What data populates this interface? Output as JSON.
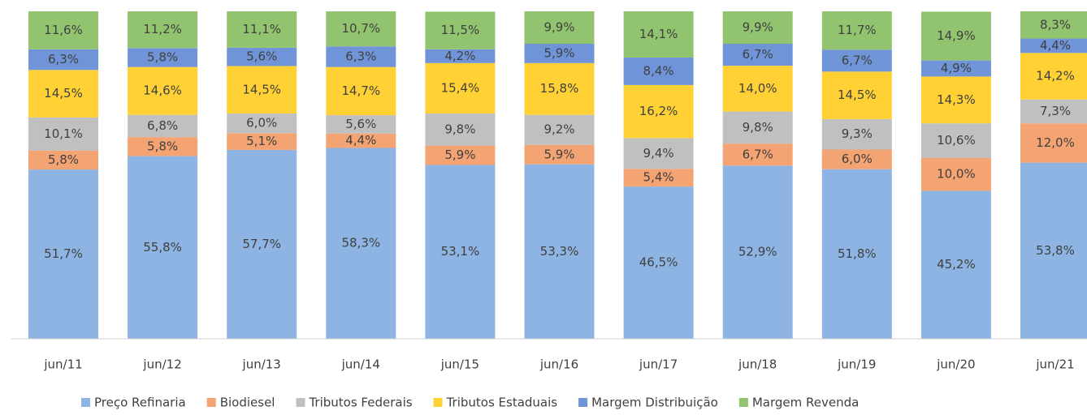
{
  "chart_data": {
    "type": "stacked_bar",
    "categories": [
      "jun/11",
      "jun/12",
      "jun/13",
      "jun/14",
      "jun/15",
      "jun/16",
      "jun/17",
      "jun/18",
      "jun/19",
      "jun/20",
      "jun/21"
    ],
    "ylim": [
      0,
      100
    ],
    "legend": "bottom",
    "series": [
      {
        "name": "Preço Refinaria",
        "color": "#8db4e2",
        "values": [
          51.7,
          55.8,
          57.7,
          58.3,
          53.1,
          53.3,
          46.5,
          52.9,
          51.8,
          45.2,
          53.8
        ],
        "value_labels": [
          "51,7%",
          "55,8%",
          "57,7%",
          "58,3%",
          "53,1%",
          "53,3%",
          "46,5%",
          "52,9%",
          "51,8%",
          "45,2%",
          "53,8%"
        ]
      },
      {
        "name": "Biodiesel",
        "color": "#f4a373",
        "values": [
          5.8,
          5.8,
          5.1,
          4.4,
          5.9,
          5.9,
          5.4,
          6.7,
          6.0,
          10.0,
          12.0
        ],
        "value_labels": [
          "5,8%",
          "5,8%",
          "5,1%",
          "4,4%",
          "5,9%",
          "5,9%",
          "5,4%",
          "6,7%",
          "6,0%",
          "10,0%",
          "12,0%"
        ]
      },
      {
        "name": "Tributos Federais",
        "color": "#c0c0c0",
        "values": [
          10.1,
          6.8,
          6.0,
          5.6,
          9.8,
          9.2,
          9.4,
          9.8,
          9.3,
          10.6,
          7.3
        ],
        "value_labels": [
          "10,1%",
          "6,8%",
          "6,0%",
          "5,6%",
          "9,8%",
          "9,2%",
          "9,4%",
          "9,8%",
          "9,3%",
          "10,6%",
          "7,3%"
        ]
      },
      {
        "name": "Tributos Estaduais",
        "color": "#ffd134",
        "values": [
          14.5,
          14.6,
          14.5,
          14.7,
          15.4,
          15.8,
          16.2,
          14.0,
          14.5,
          14.3,
          14.2
        ],
        "value_labels": [
          "14,5%",
          "14,6%",
          "14,5%",
          "14,7%",
          "15,4%",
          "15,8%",
          "16,2%",
          "14,0%",
          "14,5%",
          "14,3%",
          "14,2%"
        ]
      },
      {
        "name": "Margem Distribuição",
        "color": "#7094d8",
        "values": [
          6.3,
          5.8,
          5.6,
          6.3,
          4.2,
          5.9,
          8.4,
          6.7,
          6.7,
          4.9,
          4.4
        ],
        "value_labels": [
          "6,3%",
          "5,8%",
          "5,6%",
          "6,3%",
          "4,2%",
          "5,9%",
          "8,4%",
          "6,7%",
          "6,7%",
          "4,9%",
          "4,4%"
        ]
      },
      {
        "name": "Margem Revenda",
        "color": "#92c36e",
        "values": [
          11.6,
          11.2,
          11.1,
          10.7,
          11.5,
          9.9,
          14.1,
          9.9,
          11.7,
          14.9,
          8.3
        ],
        "value_labels": [
          "11,6%",
          "11,2%",
          "11,1%",
          "10,7%",
          "11,5%",
          "9,9%",
          "14,1%",
          "9,9%",
          "11,7%",
          "14,9%",
          "8,3%"
        ]
      }
    ]
  }
}
